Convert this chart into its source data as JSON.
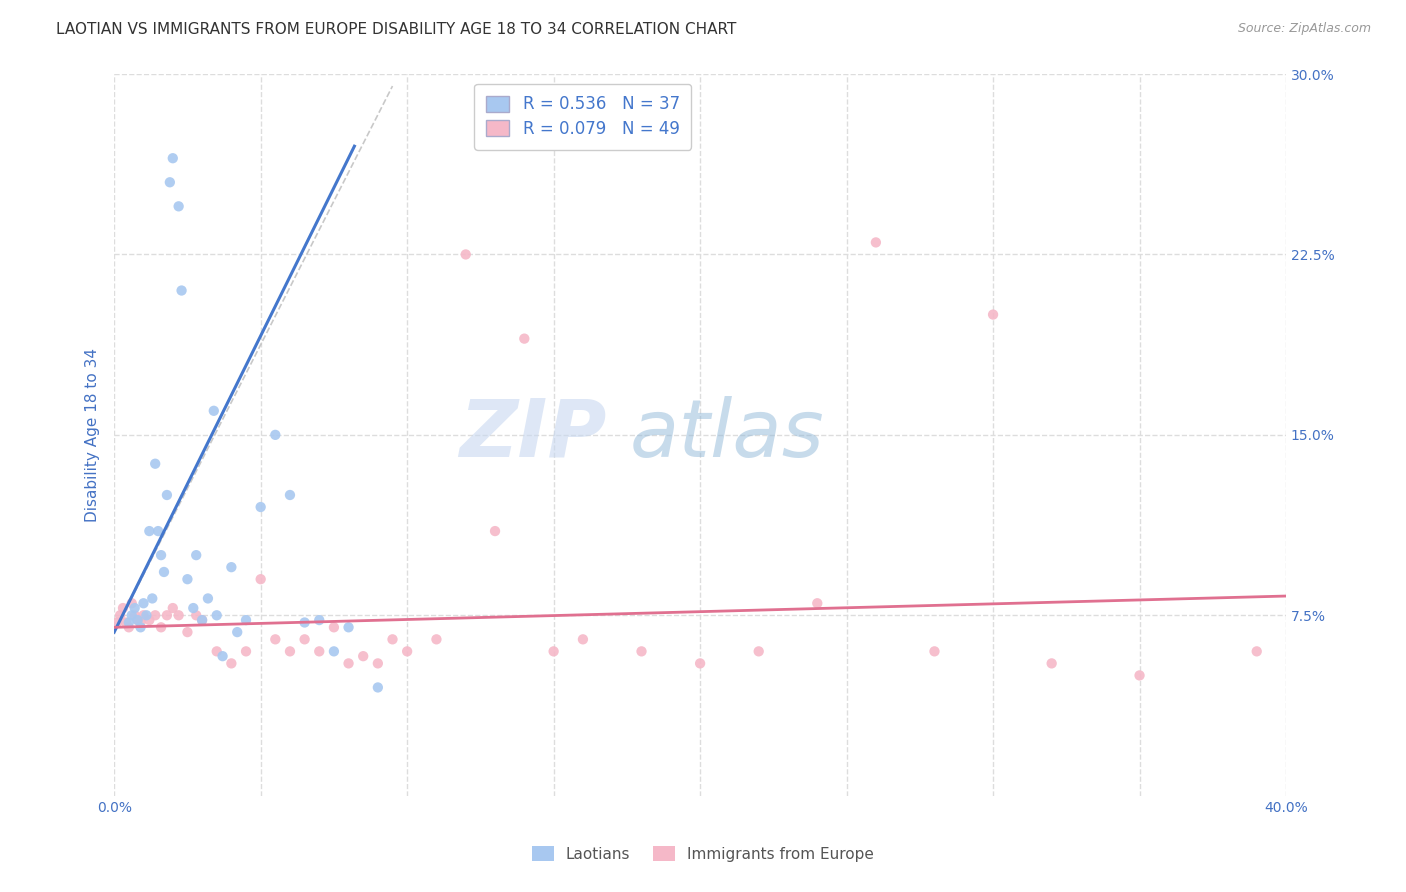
{
  "title": "LAOTIAN VS IMMIGRANTS FROM EUROPE DISABILITY AGE 18 TO 34 CORRELATION CHART",
  "source": "Source: ZipAtlas.com",
  "ylabel": "Disability Age 18 to 34",
  "xlim": [
    0.0,
    0.4
  ],
  "ylim": [
    0.0,
    0.3
  ],
  "ytick_vals": [
    0.075,
    0.15,
    0.225,
    0.3
  ],
  "ytick_labels": [
    "7.5%",
    "15.0%",
    "22.5%",
    "30.0%"
  ],
  "xtick_vals": [
    0.0,
    0.05,
    0.1,
    0.15,
    0.2,
    0.25,
    0.3,
    0.35,
    0.4
  ],
  "blue_color": "#a8c8f0",
  "pink_color": "#f5b8c8",
  "blue_line_color": "#4477cc",
  "pink_line_color": "#e07090",
  "gray_dash_color": "#bbbbbb",
  "legend_blue_label": "R = 0.536   N = 37",
  "legend_pink_label": "R = 0.079   N = 49",
  "legend_label_laotians": "Laotians",
  "legend_label_europe": "Immigrants from Europe",
  "watermark_zip": "ZIP",
  "watermark_atlas": "atlas",
  "background_color": "#ffffff",
  "grid_color": "#dddddd",
  "title_color": "#333333",
  "tick_label_color": "#4472c4",
  "title_fontsize": 11,
  "source_fontsize": 9,
  "scatter_size": 55,
  "blue_scatter_x": [
    0.005,
    0.006,
    0.007,
    0.008,
    0.009,
    0.01,
    0.011,
    0.012,
    0.013,
    0.014,
    0.015,
    0.016,
    0.017,
    0.018,
    0.019,
    0.02,
    0.022,
    0.023,
    0.025,
    0.027,
    0.028,
    0.03,
    0.032,
    0.034,
    0.035,
    0.037,
    0.04,
    0.042,
    0.045,
    0.05,
    0.055,
    0.06,
    0.065,
    0.07,
    0.075,
    0.08,
    0.09
  ],
  "blue_scatter_y": [
    0.072,
    0.075,
    0.078,
    0.073,
    0.07,
    0.08,
    0.075,
    0.11,
    0.082,
    0.138,
    0.11,
    0.1,
    0.093,
    0.125,
    0.255,
    0.265,
    0.245,
    0.21,
    0.09,
    0.078,
    0.1,
    0.073,
    0.082,
    0.16,
    0.075,
    0.058,
    0.095,
    0.068,
    0.073,
    0.12,
    0.15,
    0.125,
    0.072,
    0.073,
    0.06,
    0.07,
    0.045
  ],
  "pink_scatter_x": [
    0.001,
    0.002,
    0.003,
    0.004,
    0.005,
    0.006,
    0.007,
    0.008,
    0.009,
    0.01,
    0.012,
    0.014,
    0.016,
    0.018,
    0.02,
    0.022,
    0.025,
    0.028,
    0.03,
    0.035,
    0.04,
    0.045,
    0.05,
    0.055,
    0.06,
    0.065,
    0.07,
    0.075,
    0.08,
    0.085,
    0.09,
    0.095,
    0.1,
    0.11,
    0.12,
    0.13,
    0.14,
    0.15,
    0.16,
    0.18,
    0.2,
    0.22,
    0.24,
    0.26,
    0.28,
    0.3,
    0.32,
    0.35,
    0.39
  ],
  "pink_scatter_y": [
    0.072,
    0.075,
    0.078,
    0.072,
    0.07,
    0.08,
    0.075,
    0.073,
    0.072,
    0.075,
    0.073,
    0.075,
    0.07,
    0.075,
    0.078,
    0.075,
    0.068,
    0.075,
    0.073,
    0.06,
    0.055,
    0.06,
    0.09,
    0.065,
    0.06,
    0.065,
    0.06,
    0.07,
    0.055,
    0.058,
    0.055,
    0.065,
    0.06,
    0.065,
    0.225,
    0.11,
    0.19,
    0.06,
    0.065,
    0.06,
    0.055,
    0.06,
    0.08,
    0.23,
    0.06,
    0.2,
    0.055,
    0.05,
    0.06
  ],
  "blue_line_x0": 0.0,
  "blue_line_y0": 0.068,
  "blue_line_x1": 0.082,
  "blue_line_y1": 0.27,
  "pink_line_x0": 0.0,
  "pink_line_y0": 0.07,
  "pink_line_x1": 0.4,
  "pink_line_y1": 0.083,
  "dash_line_x0": 0.0,
  "dash_line_y0": 0.068,
  "dash_line_x1": 0.095,
  "dash_line_y1": 0.295
}
